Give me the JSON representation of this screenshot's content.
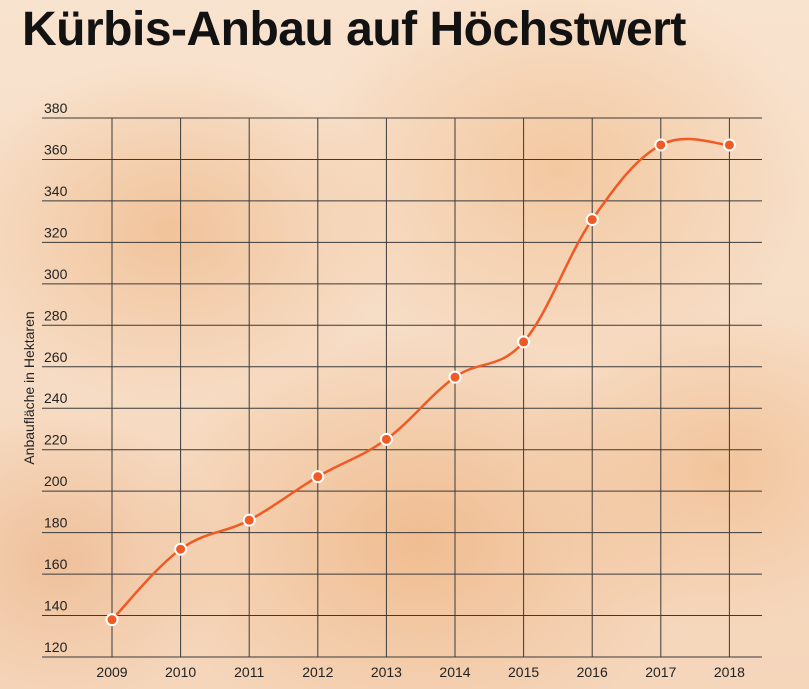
{
  "title": "Kürbis-Anbau auf Höchstwert",
  "chart_data": {
    "type": "line",
    "title": "Kürbis-Anbau auf Höchstwert",
    "xlabel": "",
    "ylabel": "Anbaufläche in Hektaren",
    "categories": [
      "2009",
      "2010",
      "2011",
      "2012",
      "2013",
      "2014",
      "2015",
      "2016",
      "2017",
      "2018"
    ],
    "series": [
      {
        "values": [
          138,
          172,
          186,
          207,
          225,
          255,
          272,
          331,
          367,
          367
        ]
      }
    ],
    "ylim": [
      120,
      380
    ],
    "yticks": [
      120,
      140,
      160,
      180,
      200,
      220,
      240,
      260,
      280,
      300,
      320,
      340,
      360,
      380
    ],
    "grid": true,
    "colors": {
      "line": "#f05a24",
      "marker_stroke": "#ffffff",
      "grid": "#3a3a3a",
      "text": "#222222"
    }
  }
}
